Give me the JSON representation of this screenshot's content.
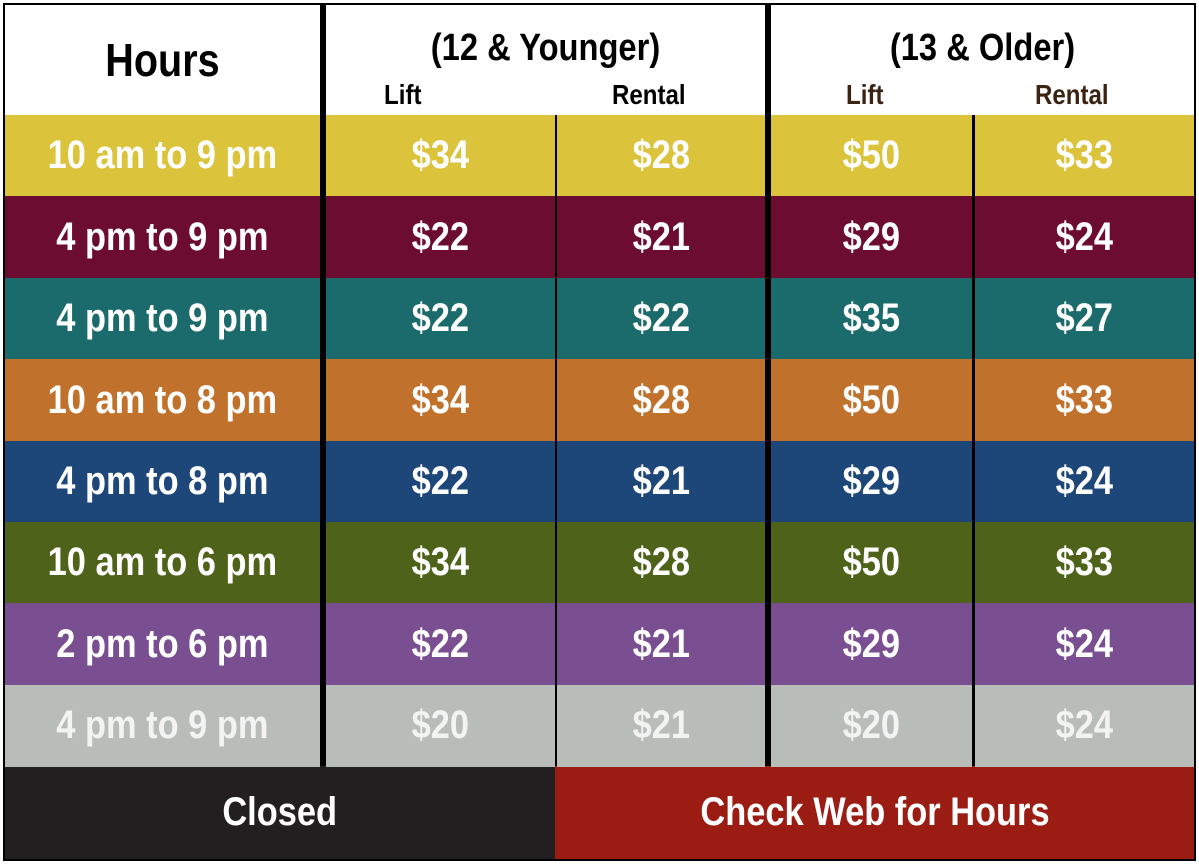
{
  "header": {
    "hours": "Hours",
    "groups": [
      {
        "title": "(12 & Younger)",
        "lift": "Lift",
        "rental": "Rental"
      },
      {
        "title": "(13 & Older)",
        "lift": "Lift",
        "rental": "Rental"
      }
    ]
  },
  "rows": [
    {
      "hours": "10 am to 9 pm",
      "prices": [
        "$34",
        "$28",
        "$50",
        "$33"
      ],
      "color": "#dbc33c"
    },
    {
      "hours": "4 pm to 9 pm",
      "prices": [
        "$22",
        "$21",
        "$29",
        "$24"
      ],
      "color": "#6d0c31"
    },
    {
      "hours": "4 pm to 9 pm",
      "prices": [
        "$22",
        "$22",
        "$35",
        "$27"
      ],
      "color": "#1b6a6c"
    },
    {
      "hours": "10 am to 8 pm",
      "prices": [
        "$34",
        "$28",
        "$50",
        "$33"
      ],
      "color": "#c0712b"
    },
    {
      "hours": "4 pm to 8 pm",
      "prices": [
        "$22",
        "$21",
        "$29",
        "$24"
      ],
      "color": "#1d4679"
    },
    {
      "hours": "10 am to 6 pm",
      "prices": [
        "$34",
        "$28",
        "$50",
        "$33"
      ],
      "color": "#4e6219"
    },
    {
      "hours": "2 pm to 6 pm",
      "prices": [
        "$22",
        "$21",
        "$29",
        "$24"
      ],
      "color": "#7a4f91"
    },
    {
      "hours": "4 pm to 9 pm",
      "prices": [
        "$20",
        "$21",
        "$20",
        "$24"
      ],
      "color": "#b9bdb9"
    }
  ],
  "footer": {
    "closed": "Closed",
    "notice": "Check Web for Hours"
  }
}
